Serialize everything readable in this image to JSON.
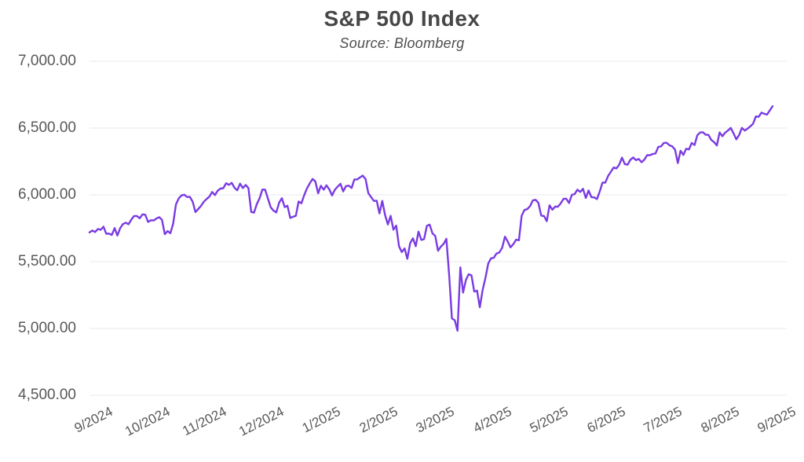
{
  "header": {
    "title": "S&P 500 Index",
    "subtitle": "Source: Bloomberg"
  },
  "chart_data": {
    "type": "line",
    "title": "S&P 500 Index",
    "subtitle": "Source: Bloomberg",
    "source": "Bloomberg",
    "xlabel": "",
    "ylabel": "",
    "legend": "none",
    "grid": "horizontal-only",
    "ylim": [
      4500,
      7000
    ],
    "y_tick_labels": [
      "7,000.00",
      "6,500.00",
      "6,000.00",
      "5,500.00",
      "5,000.00",
      "4,500.00"
    ],
    "y_gridline_values": [
      7000,
      6500,
      6000,
      5500,
      5000,
      4500
    ],
    "x_tick_labels": [
      "9/2024",
      "10/2024",
      "11/2024",
      "12/2024",
      "1/2025",
      "2/2025",
      "3/2025",
      "4/2025",
      "5/2025",
      "6/2025",
      "7/2025",
      "8/2025",
      "9/2025"
    ],
    "line_color": "#7A3BE3",
    "label_color": "#58585B",
    "title_color": "#474747",
    "grid_color": "#E9E9EC",
    "series": [
      {
        "name": "S&P 500 Index",
        "values": [
          5719,
          5733,
          5722,
          5745,
          5738,
          5762,
          5709,
          5710,
          5700,
          5751,
          5696,
          5751,
          5781,
          5792,
          5780,
          5815,
          5842,
          5842,
          5825,
          5854,
          5851,
          5797,
          5810,
          5808,
          5823,
          5833,
          5813,
          5705,
          5729,
          5713,
          5783,
          5929,
          5973,
          5996,
          6001,
          5984,
          5985,
          5949,
          5871,
          5894,
          5917,
          5949,
          5969,
          5987,
          6022,
          5998,
          6032,
          6047,
          6050,
          6087,
          6075,
          6090,
          6053,
          6034,
          6084,
          6051,
          6074,
          6051,
          5872,
          5867,
          5931,
          5974,
          6040,
          6038,
          5971,
          5907,
          5882,
          5869,
          5942,
          5975,
          5909,
          5918,
          5827,
          5836,
          5843,
          5950,
          5937,
          5997,
          6049,
          6086,
          6119,
          6101,
          6012,
          6068,
          6039,
          6071,
          6041,
          5995,
          6038,
          6061,
          6083,
          6026,
          6066,
          6069,
          6052,
          6115,
          6115,
          6130,
          6144,
          6118,
          6013,
          5983,
          5955,
          5956,
          5861,
          5955,
          5850,
          5778,
          5843,
          5739,
          5770,
          5615,
          5572,
          5599,
          5521,
          5639,
          5675,
          5615,
          5725,
          5663,
          5668,
          5768,
          5777,
          5712,
          5693,
          5581,
          5612,
          5633,
          5671,
          5396,
          5074,
          5062,
          4983,
          5457,
          5268,
          5363,
          5406,
          5397,
          5276,
          5283,
          5158,
          5288,
          5376,
          5485,
          5525,
          5529,
          5561,
          5569,
          5604,
          5687,
          5650,
          5607,
          5631,
          5664,
          5660,
          5844,
          5887,
          5893,
          5916,
          5958,
          5963,
          5940,
          5845,
          5842,
          5803,
          5922,
          5889,
          5912,
          5912,
          5936,
          5970,
          5971,
          5939,
          6000,
          6006,
          6039,
          6022,
          6045,
          5977,
          6033,
          5983,
          5981,
          5968,
          6025,
          6092,
          6092,
          6141,
          6173,
          6205,
          6198,
          6227,
          6279,
          6230,
          6226,
          6263,
          6280,
          6260,
          6268,
          6244,
          6264,
          6297,
          6297,
          6306,
          6310,
          6359,
          6363,
          6389,
          6390,
          6371,
          6363,
          6339,
          6238,
          6330,
          6299,
          6345,
          6340,
          6389,
          6373,
          6446,
          6467,
          6469,
          6450,
          6449,
          6411,
          6395,
          6370,
          6467,
          6439,
          6466,
          6482,
          6501,
          6460,
          6415,
          6448,
          6502,
          6481,
          6495,
          6513,
          6532,
          6587,
          6584,
          6615,
          6607,
          6601,
          6632,
          6664
        ]
      }
    ]
  }
}
